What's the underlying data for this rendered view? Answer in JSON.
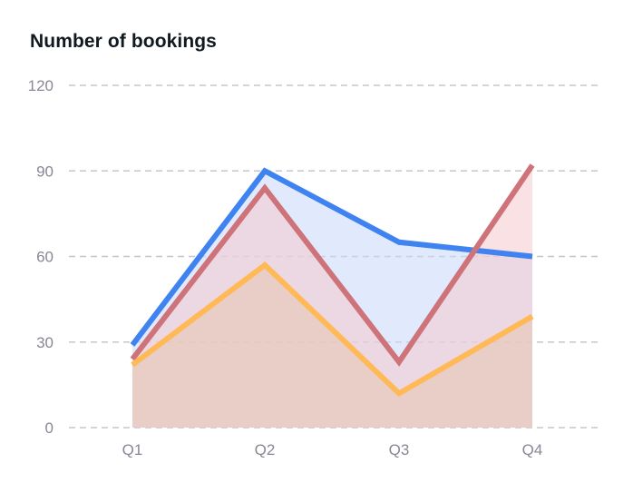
{
  "card": {
    "title": "Number of bookings"
  },
  "chart_data": {
    "type": "area",
    "title": "Number of bookings",
    "xlabel": "",
    "ylabel": "",
    "categories": [
      "Q1",
      "Q2",
      "Q3",
      "Q4"
    ],
    "yticks": [
      0,
      30,
      60,
      90,
      120
    ],
    "ylim": [
      0,
      120
    ],
    "grid": true,
    "legend": "none",
    "series": [
      {
        "name": "Series 1 (blue)",
        "color": "#3F83F0",
        "fill": "#E1E9FA",
        "values": [
          29,
          90,
          65,
          60
        ]
      },
      {
        "name": "Series 2 (red)",
        "color": "#CF737A",
        "fill": "#FDE2E2",
        "values": [
          24,
          84,
          23,
          92
        ]
      },
      {
        "name": "Series 3 (yellow)",
        "color": "#FFB957",
        "fill": "#E6D0CB",
        "values": [
          22,
          57,
          12,
          39
        ]
      }
    ]
  },
  "axis": {
    "y_labels": [
      "120",
      "90",
      "60",
      "30",
      "0"
    ],
    "x_labels": [
      "Q1",
      "Q2",
      "Q3",
      "Q4"
    ]
  },
  "colors": {
    "grid": "#C5C6CE",
    "tick_text": "#868896",
    "title_text": "#101820"
  }
}
